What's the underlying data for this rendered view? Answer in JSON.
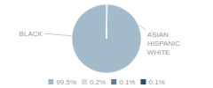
{
  "chart_data": {
    "type": "pie",
    "categories": [
      "99.5%",
      "0.2%",
      "0.1%",
      "0.1%"
    ],
    "values": [
      99.5,
      0.2,
      0.1,
      0.1
    ],
    "colors": [
      "#a2baca",
      "#cfe0ea",
      "#5b7f99",
      "#2d5068"
    ],
    "legend": "bottom",
    "annotations": [
      "BLACK",
      "ASIAN\nHISPANIC\nWHITE"
    ]
  }
}
